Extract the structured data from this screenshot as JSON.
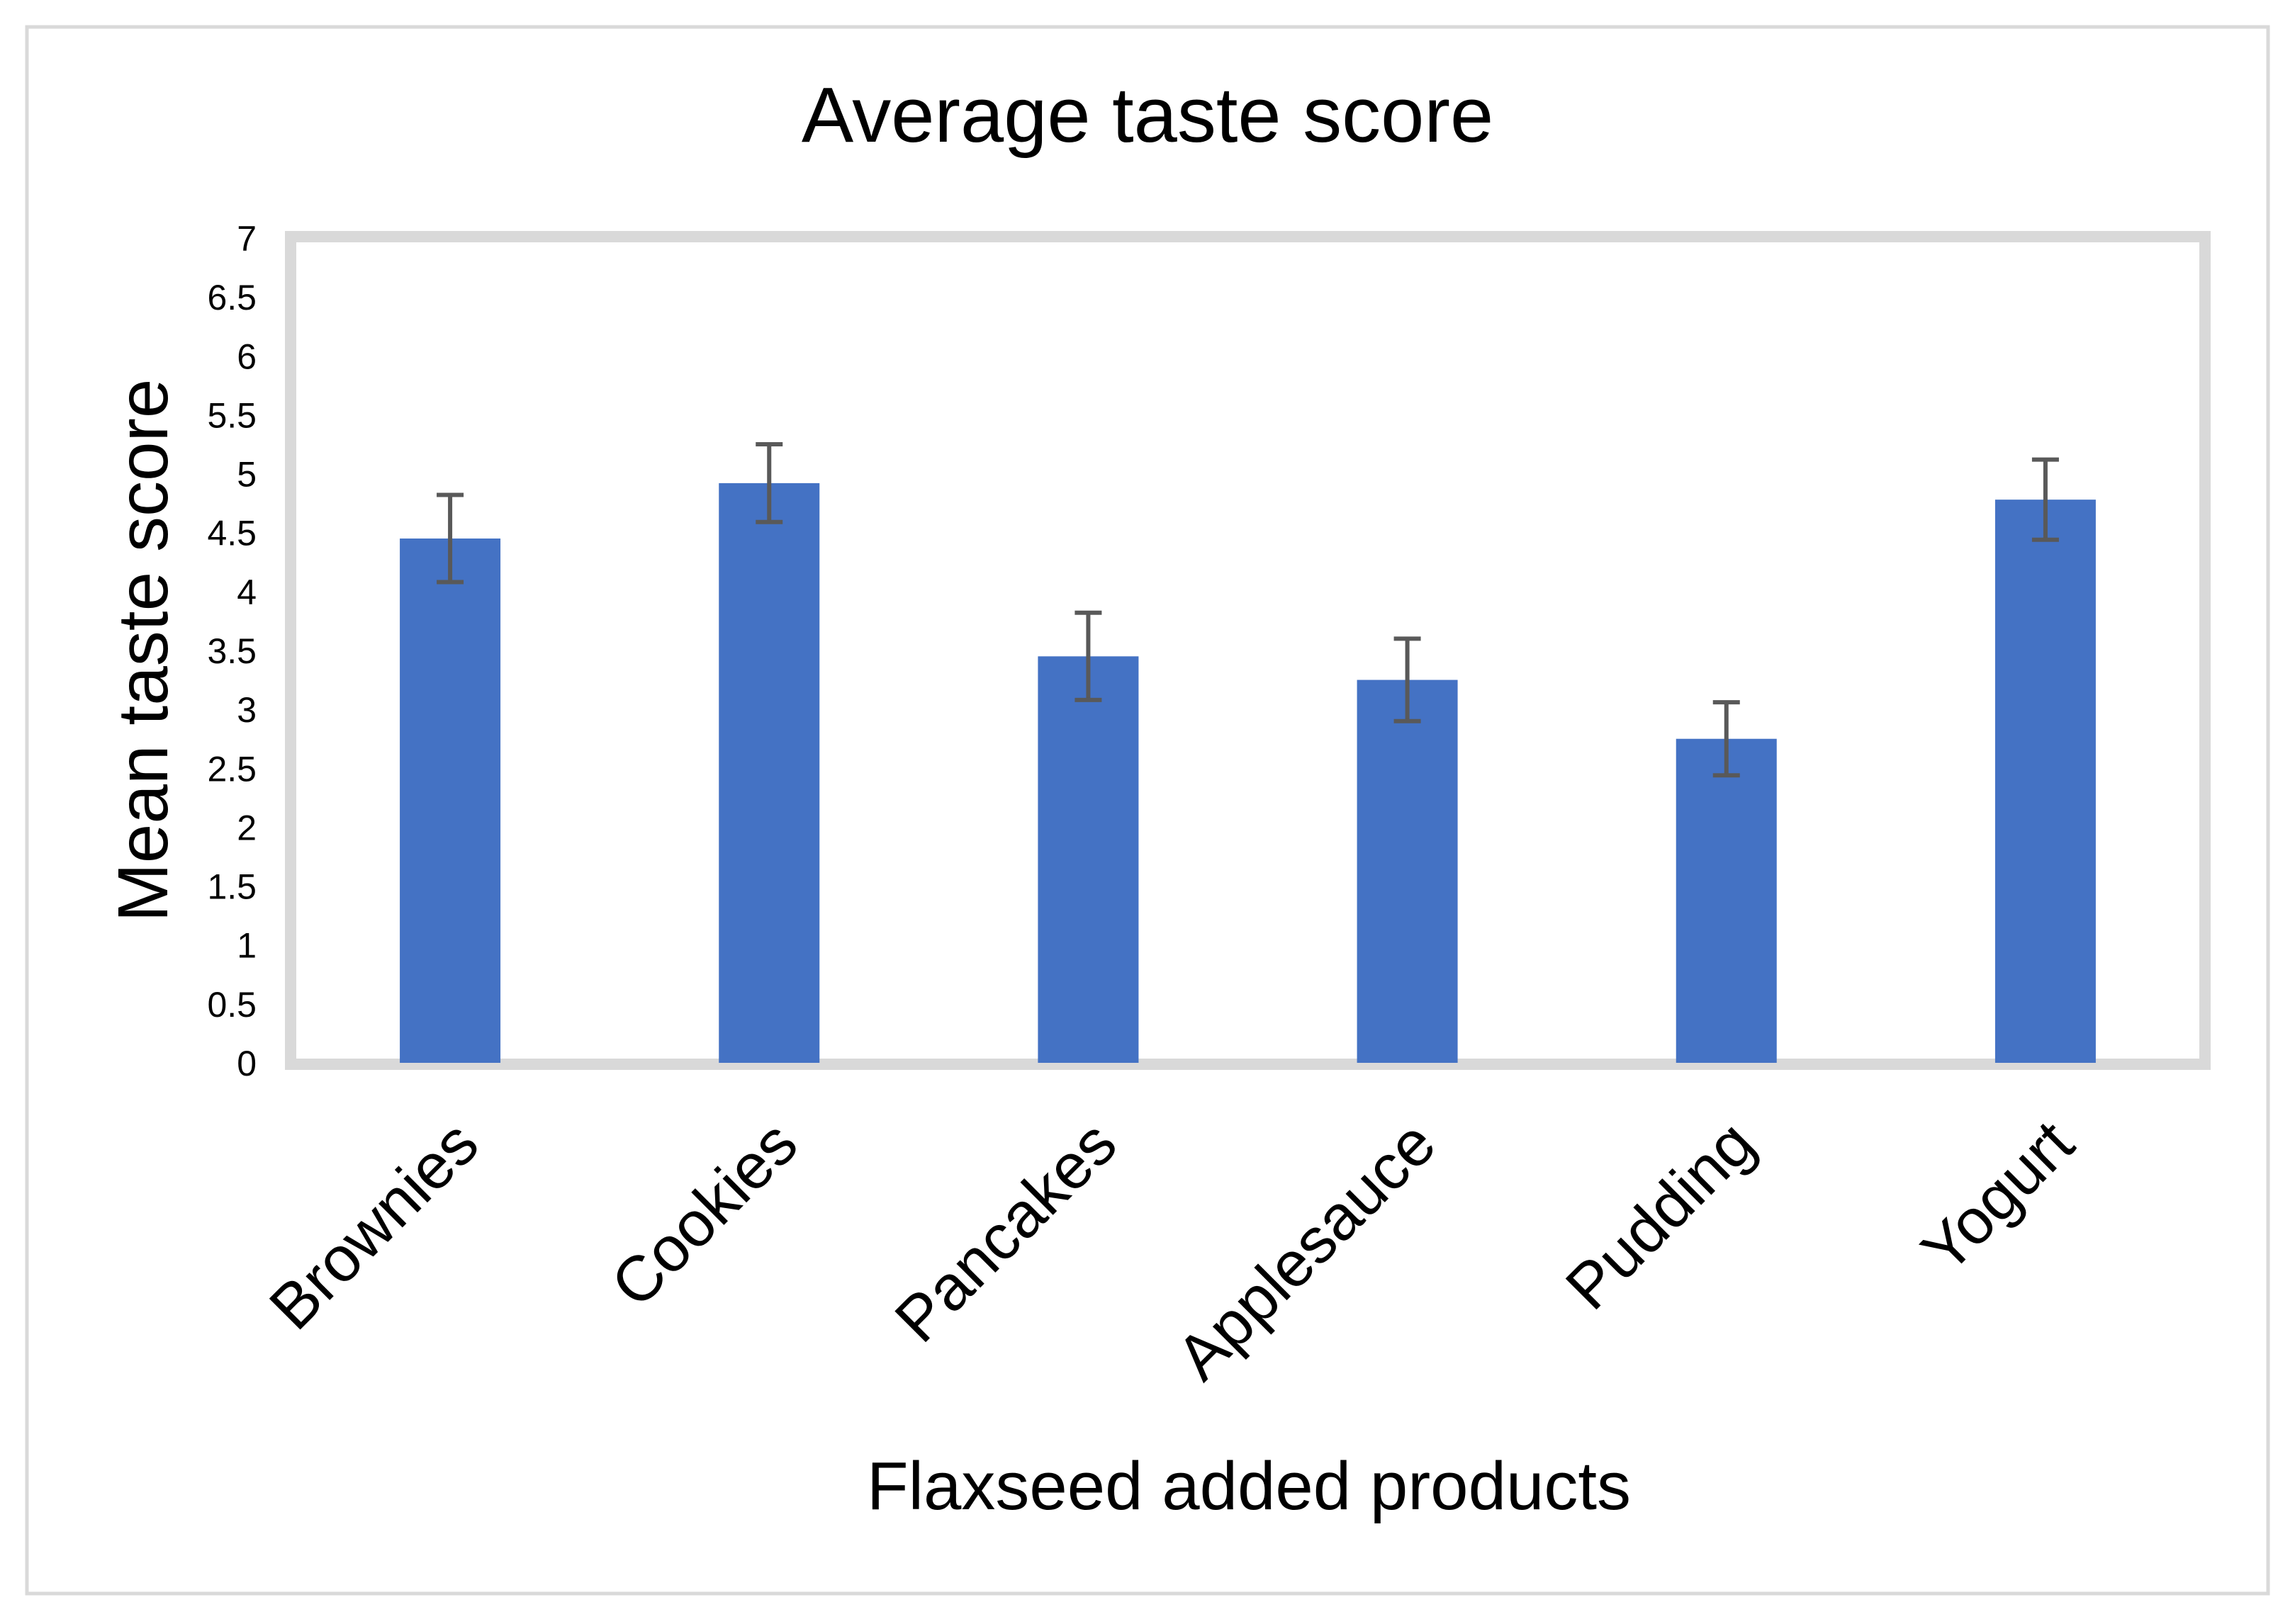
{
  "chart_data": {
    "type": "bar",
    "title": "Average taste score",
    "xlabel": "Flaxseed added products",
    "ylabel": "Mean taste score",
    "categories": [
      "Brownies",
      "Cookies",
      "Pancakes",
      "Applesauce",
      "Pudding",
      "Yogurt"
    ],
    "values": [
      4.45,
      4.92,
      3.45,
      3.25,
      2.75,
      4.78
    ],
    "error": [
      0.37,
      0.33,
      0.37,
      0.35,
      0.31,
      0.34
    ],
    "ylim": [
      0,
      7
    ],
    "yticks": [
      "0",
      "0.5",
      "1",
      "1.5",
      "2",
      "2.5",
      "3",
      "3.5",
      "4",
      "4.5",
      "5",
      "5.5",
      "6",
      "6.5",
      "7"
    ],
    "grid": false,
    "legend": "none",
    "colors": {
      "bar": "#4472c4",
      "error_bar": "#595959",
      "plot_border": "#d9d9d9",
      "frame_border": "#d9d9d9"
    }
  }
}
